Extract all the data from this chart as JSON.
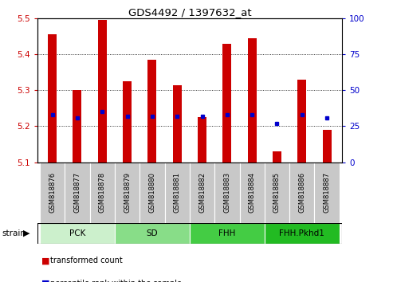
{
  "title": "GDS4492 / 1397632_at",
  "samples": [
    "GSM818876",
    "GSM818877",
    "GSM818878",
    "GSM818879",
    "GSM818880",
    "GSM818881",
    "GSM818882",
    "GSM818883",
    "GSM818884",
    "GSM818885",
    "GSM818886",
    "GSM818887"
  ],
  "transformed_counts": [
    5.455,
    5.3,
    5.495,
    5.325,
    5.385,
    5.315,
    5.225,
    5.43,
    5.445,
    5.13,
    5.33,
    5.19
  ],
  "percentile_ranks": [
    33,
    31,
    35,
    32,
    32,
    32,
    32,
    33,
    33,
    27,
    33,
    31
  ],
  "groups": [
    {
      "name": "PCK",
      "start": 0,
      "end": 2,
      "color": "#ccf0cc"
    },
    {
      "name": "SD",
      "start": 3,
      "end": 5,
      "color": "#88dd88"
    },
    {
      "name": "FHH",
      "start": 6,
      "end": 8,
      "color": "#44cc44"
    },
    {
      "name": "FHH.Pkhd1",
      "start": 9,
      "end": 11,
      "color": "#22bb22"
    }
  ],
  "ylim": [
    5.1,
    5.5
  ],
  "yticks_left": [
    5.1,
    5.2,
    5.3,
    5.4,
    5.5
  ],
  "yticks_right": [
    0,
    25,
    50,
    75,
    100
  ],
  "bar_color": "#cc0000",
  "dot_color": "#0000cc",
  "bar_width": 0.35,
  "baseline": 5.1,
  "label_bg": "#c8c8c8"
}
